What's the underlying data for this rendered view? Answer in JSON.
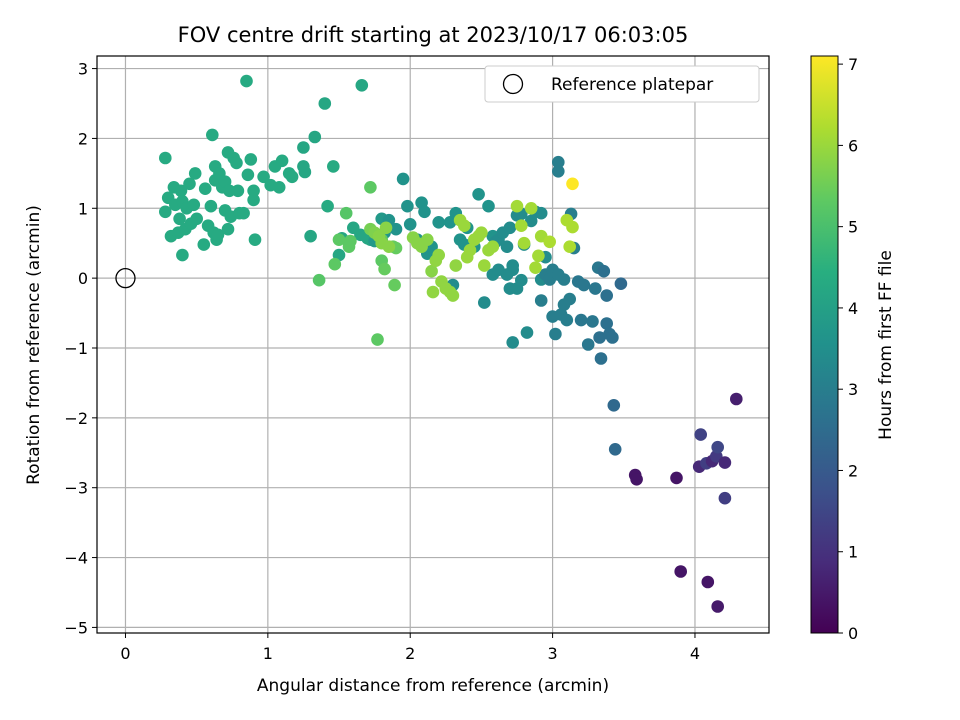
{
  "chart_data": {
    "type": "scatter",
    "title": "FOV centre drift starting at 2023/10/17 06:03:05",
    "xlabel": "Angular distance from reference (arcmin)",
    "ylabel": "Rotation from reference (arcmin)",
    "xlim": [
      -0.2,
      4.52
    ],
    "ylim": [
      -5.08,
      3.18
    ],
    "xticks": [
      0,
      1,
      2,
      3,
      4
    ],
    "yticks": [
      -5,
      -4,
      -3,
      -2,
      -1,
      0,
      1,
      2,
      3
    ],
    "grid": true,
    "legend": {
      "placement": "top-right",
      "entries": [
        "Reference platepar"
      ]
    },
    "reference_point": {
      "x": 0,
      "y": 0,
      "label": "Reference platepar"
    },
    "colorbar": {
      "label": "Hours from first FF file",
      "range": [
        0,
        7.1
      ],
      "ticks": [
        0,
        1,
        2,
        3,
        4,
        5,
        6,
        7
      ],
      "colormap": "viridis"
    },
    "points": [
      [
        0.28,
        1.72,
        4.3
      ],
      [
        0.28,
        0.95,
        4.3
      ],
      [
        0.3,
        1.15,
        4.3
      ],
      [
        0.32,
        0.6,
        4.3
      ],
      [
        0.34,
        1.3,
        4.3
      ],
      [
        0.35,
        1.05,
        4.3
      ],
      [
        0.37,
        0.65,
        4.3
      ],
      [
        0.38,
        0.85,
        4.3
      ],
      [
        0.39,
        1.25,
        4.3
      ],
      [
        0.4,
        1.1,
        4.3
      ],
      [
        0.4,
        0.33,
        4.3
      ],
      [
        0.42,
        0.7,
        4.3
      ],
      [
        0.43,
        1.0,
        4.3
      ],
      [
        0.45,
        1.35,
        4.3
      ],
      [
        0.46,
        0.78,
        4.3
      ],
      [
        0.48,
        1.05,
        4.3
      ],
      [
        0.49,
        1.5,
        4.3
      ],
      [
        0.5,
        0.85,
        4.3
      ],
      [
        0.55,
        0.48,
        4.3
      ],
      [
        0.56,
        1.28,
        4.3
      ],
      [
        0.58,
        0.75,
        4.3
      ],
      [
        0.6,
        1.03,
        4.3
      ],
      [
        0.61,
        2.05,
        4.3
      ],
      [
        0.62,
        0.65,
        4.3
      ],
      [
        0.63,
        1.6,
        4.3
      ],
      [
        0.63,
        1.4,
        4.3
      ],
      [
        0.64,
        0.55,
        4.3
      ],
      [
        0.65,
        0.62,
        4.3
      ],
      [
        0.66,
        1.5,
        4.3
      ],
      [
        0.68,
        1.3,
        4.3
      ],
      [
        0.7,
        0.97,
        4.3
      ],
      [
        0.7,
        1.38,
        4.3
      ],
      [
        0.72,
        0.7,
        4.3
      ],
      [
        0.72,
        1.8,
        4.3
      ],
      [
        0.73,
        1.25,
        4.3
      ],
      [
        0.74,
        0.88,
        4.3
      ],
      [
        0.76,
        1.72,
        4.3
      ],
      [
        0.78,
        1.65,
        4.3
      ],
      [
        0.79,
        1.25,
        4.3
      ],
      [
        0.8,
        0.93,
        4.3
      ],
      [
        0.83,
        0.93,
        4.3
      ],
      [
        0.85,
        2.82,
        4.3
      ],
      [
        0.86,
        1.48,
        4.3
      ],
      [
        0.88,
        1.7,
        4.3
      ],
      [
        0.9,
        1.25,
        4.3
      ],
      [
        0.9,
        1.12,
        4.3
      ],
      [
        0.91,
        0.55,
        4.3
      ],
      [
        0.97,
        1.45,
        4.3
      ],
      [
        1.02,
        1.33,
        4.3
      ],
      [
        1.05,
        1.6,
        4.3
      ],
      [
        1.08,
        1.3,
        4.3
      ],
      [
        1.1,
        1.68,
        4.3
      ],
      [
        1.15,
        1.5,
        4.3
      ],
      [
        1.17,
        1.45,
        4.3
      ],
      [
        1.25,
        1.6,
        4.2
      ],
      [
        1.25,
        1.87,
        4.2
      ],
      [
        1.26,
        1.52,
        4.2
      ],
      [
        1.3,
        0.6,
        4.2
      ],
      [
        1.33,
        2.02,
        4.2
      ],
      [
        1.4,
        2.5,
        4.2
      ],
      [
        1.42,
        1.03,
        4.3
      ],
      [
        1.46,
        1.6,
        4.3
      ],
      [
        1.66,
        2.76,
        4.2
      ],
      [
        1.5,
        0.33,
        4.2
      ],
      [
        1.52,
        0.57,
        4.2
      ],
      [
        1.6,
        0.72,
        4.2
      ],
      [
        1.65,
        0.62,
        4.2
      ],
      [
        1.7,
        0.57,
        4.2
      ],
      [
        1.72,
        0.55,
        4.2
      ],
      [
        1.75,
        0.53,
        3.8
      ],
      [
        1.8,
        0.85,
        3.8
      ],
      [
        1.82,
        0.65,
        3.6
      ],
      [
        1.85,
        0.83,
        3.6
      ],
      [
        1.9,
        0.7,
        3.6
      ],
      [
        1.95,
        1.42,
        3.6
      ],
      [
        1.98,
        1.03,
        3.6
      ],
      [
        2.0,
        0.77,
        3.6
      ],
      [
        2.05,
        0.55,
        3.6
      ],
      [
        2.08,
        1.08,
        3.6
      ],
      [
        2.1,
        0.95,
        3.6
      ],
      [
        2.12,
        0.35,
        3.6
      ],
      [
        2.15,
        0.45,
        3.6
      ],
      [
        2.2,
        0.8,
        3.6
      ],
      [
        2.28,
        0.8,
        3.6
      ],
      [
        2.32,
        0.93,
        3.6
      ],
      [
        2.35,
        0.55,
        3.6
      ],
      [
        2.38,
        0.48,
        3.6
      ],
      [
        2.4,
        0.72,
        3.6
      ],
      [
        2.45,
        0.45,
        3.6
      ],
      [
        2.48,
        1.2,
        3.6
      ],
      [
        2.55,
        1.03,
        3.6
      ],
      [
        2.58,
        0.6,
        3.6
      ],
      [
        2.6,
        0.52,
        3.4
      ],
      [
        2.62,
        0.55,
        3.4
      ],
      [
        2.65,
        0.65,
        3.4
      ],
      [
        2.68,
        0.45,
        3.4
      ],
      [
        2.7,
        0.72,
        3.4
      ],
      [
        2.72,
        0.12,
        3.4
      ],
      [
        2.75,
        0.9,
        3.4
      ],
      [
        2.78,
        0.92,
        3.4
      ],
      [
        2.8,
        0.48,
        3.4
      ],
      [
        2.85,
        0.82,
        3.4
      ],
      [
        2.88,
        0.95,
        3.4
      ],
      [
        2.92,
        0.93,
        3.4
      ],
      [
        2.95,
        0.3,
        3.4
      ],
      [
        2.3,
        -0.1,
        3.4
      ],
      [
        2.52,
        -0.35,
        3.4
      ],
      [
        2.58,
        0.05,
        3.4
      ],
      [
        2.62,
        0.12,
        3.4
      ],
      [
        2.68,
        0.05,
        3.4
      ],
      [
        2.7,
        -0.15,
        3.4
      ],
      [
        2.72,
        0.18,
        3.4
      ],
      [
        2.75,
        -0.15,
        3.4
      ],
      [
        2.78,
        -0.03,
        3.4
      ],
      [
        2.72,
        -0.92,
        3.4
      ],
      [
        2.82,
        -0.78,
        3.4
      ],
      [
        2.92,
        -0.02,
        3.4
      ],
      [
        2.92,
        -0.32,
        3.0
      ],
      [
        2.95,
        0.05,
        3.0
      ],
      [
        2.98,
        -0.02,
        3.0
      ],
      [
        3.0,
        0.12,
        3.0
      ],
      [
        3.0,
        -0.55,
        3.0
      ],
      [
        3.02,
        -0.8,
        3.0
      ],
      [
        3.04,
        0.05,
        3.0
      ],
      [
        3.04,
        1.66,
        3.0
      ],
      [
        3.04,
        1.53,
        3.0
      ],
      [
        3.06,
        -0.52,
        3.0
      ],
      [
        3.08,
        -0.02,
        3.0
      ],
      [
        3.08,
        -0.38,
        3.0
      ],
      [
        3.1,
        -0.6,
        3.0
      ],
      [
        3.12,
        -0.3,
        3.0
      ],
      [
        3.13,
        0.92,
        3.0
      ],
      [
        3.15,
        0.43,
        3.0
      ],
      [
        3.18,
        -0.05,
        2.8
      ],
      [
        3.2,
        -0.6,
        2.8
      ],
      [
        3.22,
        -0.1,
        2.8
      ],
      [
        3.25,
        -0.95,
        2.8
      ],
      [
        3.28,
        -0.62,
        2.8
      ],
      [
        3.3,
        -0.15,
        2.8
      ],
      [
        3.32,
        0.15,
        2.8
      ],
      [
        3.33,
        -0.85,
        2.6
      ],
      [
        3.34,
        -1.15,
        2.6
      ],
      [
        3.36,
        0.1,
        2.6
      ],
      [
        3.38,
        -0.25,
        2.6
      ],
      [
        3.38,
        -0.65,
        2.6
      ],
      [
        3.4,
        -0.8,
        2.6
      ],
      [
        3.42,
        -0.85,
        2.6
      ],
      [
        3.43,
        -1.82,
        2.4
      ],
      [
        3.44,
        -2.45,
        2.4
      ],
      [
        3.48,
        -0.08,
        2.4
      ],
      [
        3.58,
        -2.82,
        0.4
      ],
      [
        3.59,
        -2.88,
        0.4
      ],
      [
        3.87,
        -2.86,
        0.4
      ],
      [
        3.9,
        -4.2,
        0.4
      ],
      [
        4.03,
        -2.7,
        0.8
      ],
      [
        4.04,
        -2.24,
        1.4
      ],
      [
        4.08,
        -2.65,
        1.3
      ],
      [
        4.09,
        -4.35,
        0.4
      ],
      [
        4.12,
        -2.62,
        0.8
      ],
      [
        4.15,
        -2.55,
        1.2
      ],
      [
        4.16,
        -2.42,
        1.5
      ],
      [
        4.16,
        -4.7,
        0.5
      ],
      [
        4.21,
        -2.64,
        0.8
      ],
      [
        4.21,
        -3.15,
        1.3
      ],
      [
        4.29,
        -1.73,
        0.6
      ],
      [
        1.36,
        -0.03,
        5.2
      ],
      [
        1.47,
        0.2,
        5.3
      ],
      [
        1.5,
        0.55,
        5.3
      ],
      [
        1.55,
        0.93,
        5.2
      ],
      [
        1.57,
        0.45,
        5.3
      ],
      [
        1.58,
        0.53,
        5.3
      ],
      [
        1.72,
        1.3,
        5.3
      ],
      [
        1.77,
        -0.88,
        5.3
      ],
      [
        1.8,
        0.25,
        5.3
      ],
      [
        1.8,
        0.55,
        5.4
      ],
      [
        1.82,
        0.13,
        5.4
      ],
      [
        1.88,
        0.45,
        5.4
      ],
      [
        1.9,
        0.43,
        5.4
      ],
      [
        1.89,
        -0.1,
        5.4
      ],
      [
        1.72,
        0.7,
        5.6
      ],
      [
        1.75,
        0.65,
        5.7
      ],
      [
        1.78,
        0.6,
        5.8
      ],
      [
        1.8,
        0.5,
        5.8
      ],
      [
        1.83,
        0.72,
        5.8
      ],
      [
        1.85,
        0.45,
        5.8
      ],
      [
        2.02,
        0.58,
        5.8
      ],
      [
        2.05,
        0.5,
        5.8
      ],
      [
        2.08,
        0.45,
        5.8
      ],
      [
        2.12,
        0.55,
        5.8
      ],
      [
        2.15,
        0.1,
        5.8
      ],
      [
        2.18,
        0.25,
        5.9
      ],
      [
        2.2,
        0.33,
        5.9
      ],
      [
        2.22,
        -0.05,
        5.9
      ],
      [
        2.25,
        -0.15,
        5.9
      ],
      [
        2.28,
        -0.2,
        5.9
      ],
      [
        2.3,
        -0.25,
        5.9
      ],
      [
        2.32,
        0.18,
        5.9
      ],
      [
        2.35,
        0.83,
        6.0
      ],
      [
        2.38,
        0.75,
        6.0
      ],
      [
        2.4,
        0.3,
        6.0
      ],
      [
        2.42,
        0.4,
        6.0
      ],
      [
        2.45,
        0.55,
        6.0
      ],
      [
        2.48,
        0.6,
        6.0
      ],
      [
        2.5,
        0.65,
        6.0
      ],
      [
        2.52,
        0.18,
        6.0
      ],
      [
        2.55,
        0.4,
        6.0
      ],
      [
        2.58,
        0.45,
        6.0
      ],
      [
        2.16,
        -0.2,
        5.9
      ],
      [
        2.75,
        1.03,
        6.1
      ],
      [
        2.78,
        0.75,
        6.1
      ],
      [
        2.8,
        0.5,
        6.1
      ],
      [
        2.85,
        1.0,
        6.1
      ],
      [
        2.88,
        0.15,
        6.1
      ],
      [
        2.9,
        0.32,
        6.1
      ],
      [
        2.92,
        0.6,
        6.1
      ],
      [
        2.98,
        0.52,
        6.2
      ],
      [
        3.1,
        0.83,
        6.2
      ],
      [
        3.12,
        0.45,
        6.2
      ],
      [
        3.14,
        0.73,
        6.2
      ],
      [
        3.14,
        1.35,
        7.1
      ]
    ]
  }
}
